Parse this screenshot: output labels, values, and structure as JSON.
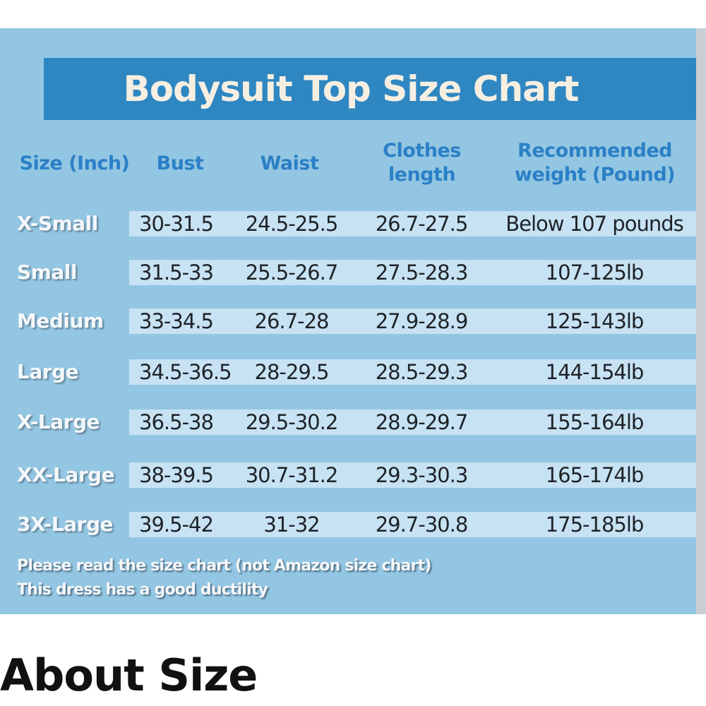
{
  "size_chart": {
    "title": "Bodysuit Top Size Chart",
    "header": [
      "Size (Inch)",
      "Bust",
      "Waist",
      "Clothes length",
      "Recommended weight (Pound)"
    ],
    "rows": [
      [
        "X-Small",
        "30-31.5",
        "24.5-25.5",
        "26.7-27.5",
        "Below 107 pounds"
      ],
      [
        "Small",
        "31.5-33",
        "25.5-26.7",
        "27.5-28.3",
        "107-125lb"
      ],
      [
        "Medium",
        "33-34.5",
        "26.7-28",
        "27.9-28.9",
        "125-143lb"
      ],
      [
        "Large",
        "34.5-36.5",
        "28-29.5",
        "28.5-29.3",
        "144-154lb"
      ],
      [
        "X-Large",
        "36.5-38",
        "29.5-30.2",
        "28.9-29.7",
        "155-164lb"
      ],
      [
        "XX-Large",
        "38-39.5",
        "30.7-31.2",
        "29.3-30.3",
        "165-174lb"
      ],
      [
        "3X-Large",
        "39.5-42",
        "31-32",
        "29.7-30.8",
        "175-185lb"
      ]
    ],
    "notes": [
      "Please read the size chart (not Amazon size chart)",
      "This dress has a good ductility"
    ]
  },
  "section_heading": "About Size"
}
